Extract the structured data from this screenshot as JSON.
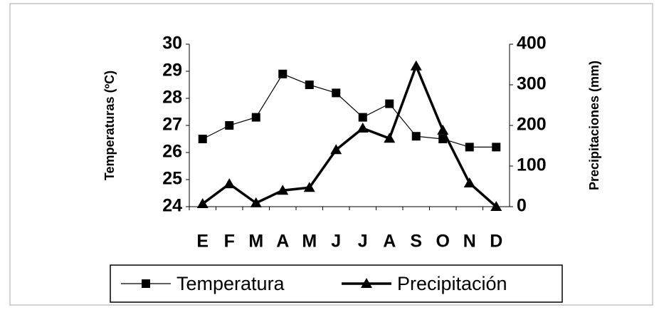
{
  "chart_data": {
    "type": "line",
    "categories": [
      "E",
      "F",
      "M",
      "A",
      "M",
      "J",
      "J",
      "A",
      "S",
      "O",
      "N",
      "D"
    ],
    "ylabel": "Temperaturas (ºC)",
    "y2label": "Precipitaciones (mm)",
    "ylim": [
      24,
      30
    ],
    "yticks": [
      24,
      25,
      26,
      27,
      28,
      29,
      30
    ],
    "y2lim": [
      0,
      400
    ],
    "y2ticks": [
      0,
      100,
      200,
      300,
      400
    ],
    "series": [
      {
        "name": "Temperatura",
        "color": "#000000",
        "values": [
          26.5,
          27.0,
          27.3,
          28.9,
          28.5,
          28.2,
          27.3,
          27.8,
          26.6,
          26.5,
          26.2,
          26.2
        ]
      },
      {
        "name": "Precipitación",
        "color": "#000000",
        "axis": "y2",
        "values": [
          7,
          56,
          9,
          40,
          47,
          140,
          193,
          168,
          346,
          188,
          58,
          0
        ]
      }
    ]
  }
}
